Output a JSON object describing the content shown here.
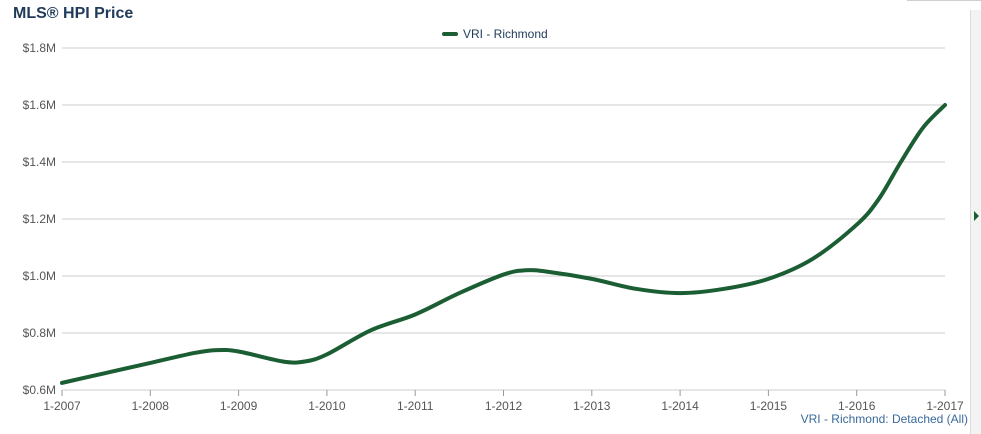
{
  "title": "MLS® HPI Price",
  "source_note": "VRI - Richmond: Detached (All)",
  "colors": {
    "series": "#1b5e33",
    "title": "#1f3a5a",
    "grid": "#cccccc"
  },
  "side_control": {
    "icon": "triangle-right-icon"
  },
  "chart_data": {
    "type": "line",
    "title": "MLS® HPI Price",
    "xlabel": "",
    "ylabel": "",
    "x_ticks": [
      "1-2007",
      "1-2008",
      "1-2009",
      "1-2010",
      "1-2011",
      "1-2012",
      "1-2013",
      "1-2014",
      "1-2015",
      "1-2016",
      "1-2017"
    ],
    "y_ticks": [
      "$0.6M",
      "$0.8M",
      "$1.0M",
      "$1.2M",
      "$1.4M",
      "$1.6M",
      "$1.8M"
    ],
    "ylim": [
      0.6,
      1.8
    ],
    "xlim": [
      2007,
      2017
    ],
    "grid": "horizontal",
    "legend": "top-center",
    "series": [
      {
        "name": "VRI - Richmond",
        "x": [
          2007.0,
          2007.5,
          2008.0,
          2008.5,
          2008.75,
          2009.0,
          2009.5,
          2009.75,
          2010.0,
          2010.5,
          2011.0,
          2011.5,
          2012.0,
          2012.25,
          2012.5,
          2013.0,
          2013.5,
          2014.0,
          2014.5,
          2015.0,
          2015.5,
          2016.0,
          2016.25,
          2016.5,
          2016.75,
          2017.0
        ],
        "values": [
          0.625,
          0.66,
          0.695,
          0.73,
          0.74,
          0.735,
          0.7,
          0.7,
          0.725,
          0.81,
          0.865,
          0.94,
          1.005,
          1.02,
          1.015,
          0.99,
          0.955,
          0.94,
          0.955,
          0.99,
          1.06,
          1.18,
          1.27,
          1.4,
          1.52,
          1.6
        ]
      }
    ]
  }
}
